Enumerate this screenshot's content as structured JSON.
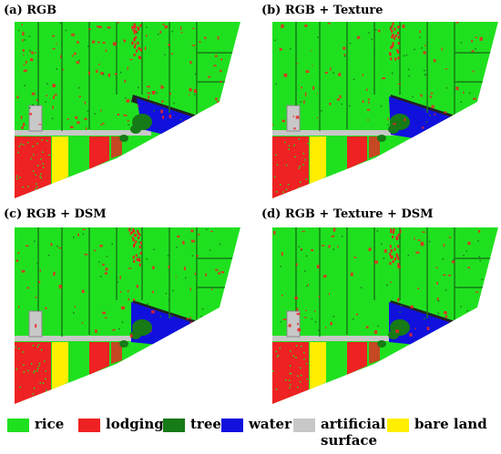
{
  "panels": [
    {
      "title": "(a) RGB",
      "variant": "a"
    },
    {
      "title": "(b) RGB + Texture",
      "variant": "b"
    },
    {
      "title": "(c) RGB + DSM",
      "variant": "c"
    },
    {
      "title": "(d) RGB + Texture + DSM",
      "variant": "d"
    }
  ],
  "legend": [
    {
      "label": "rice",
      "color": "#1fe01f"
    },
    {
      "label": "lodging",
      "color": "#ee2222"
    },
    {
      "label": "tree",
      "color": "#167a16"
    },
    {
      "label": "water",
      "color": "#1111dd"
    },
    {
      "label": "artificial surface",
      "line1": "artificial",
      "line2": "surface",
      "color": "#c8c8c8"
    },
    {
      "label": "bare land",
      "color": "#ffee00"
    }
  ]
}
